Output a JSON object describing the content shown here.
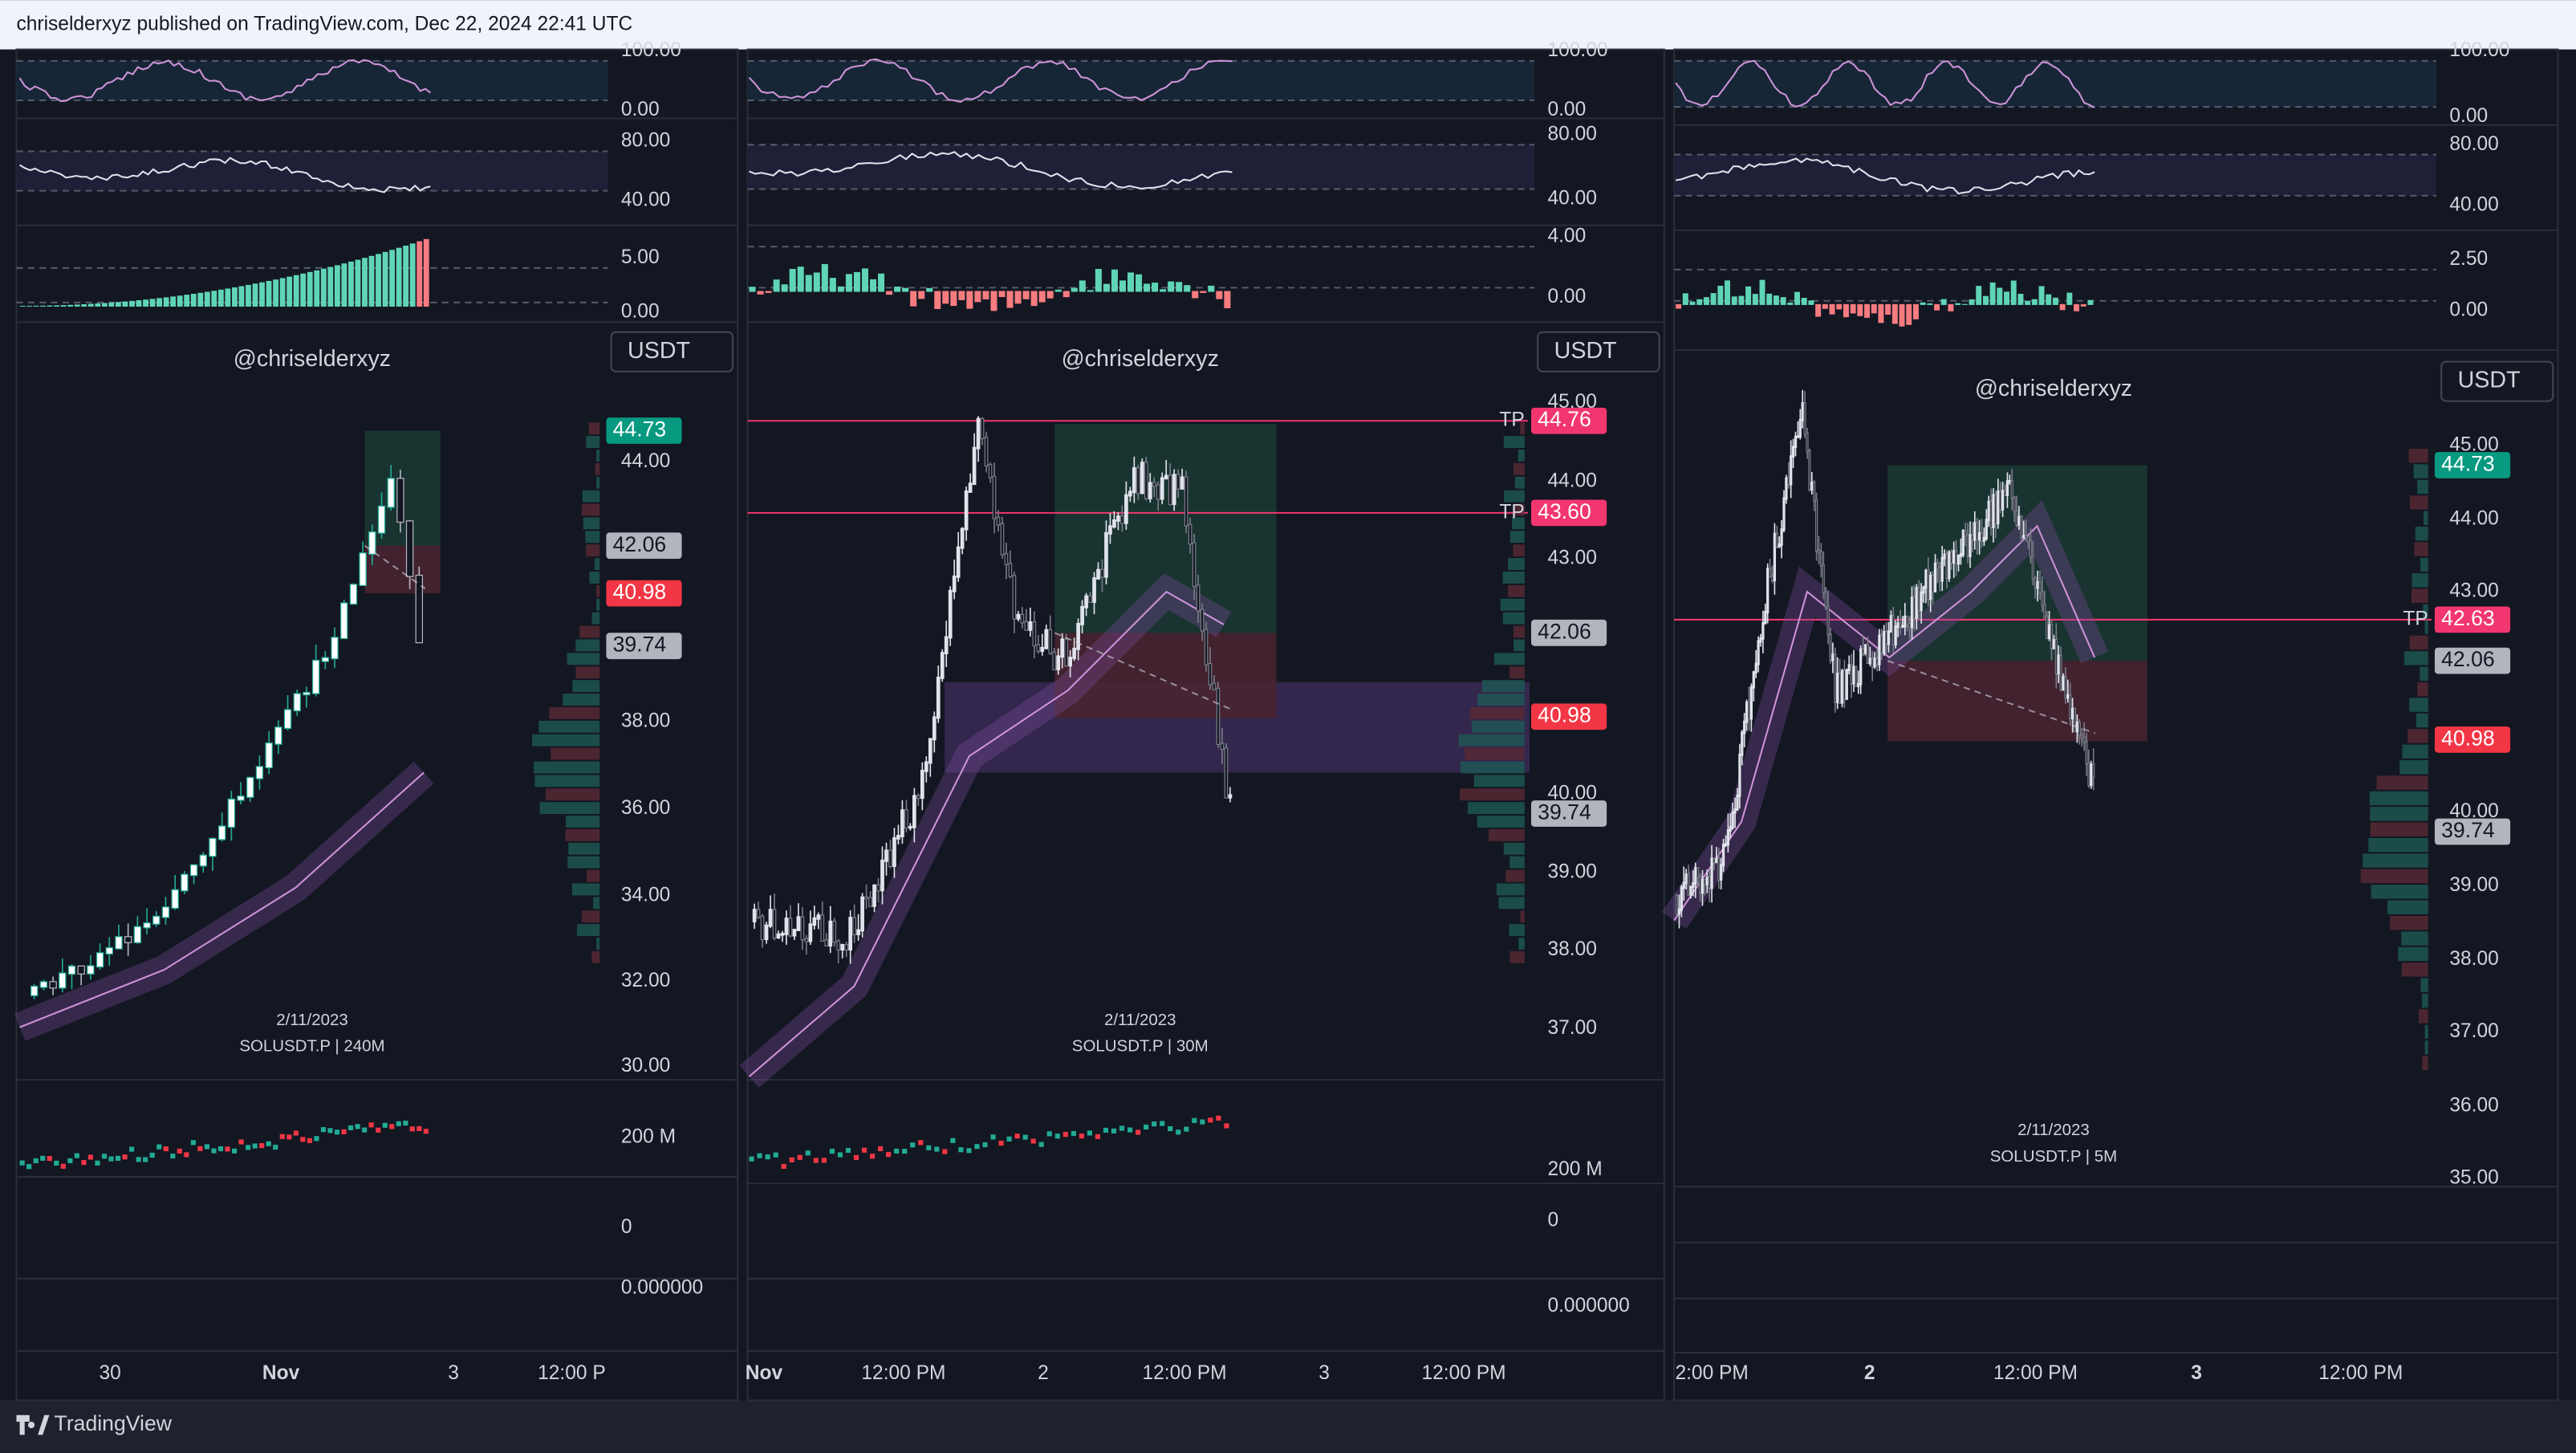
{
  "header": {
    "text": "chriselderxyz published on TradingView.com, Dec 22, 2024 22:41 UTC"
  },
  "footer": {
    "brand": "TradingView"
  },
  "panels": [
    {
      "oscillator_axes": [
        [
          "100.00",
          "0.00"
        ],
        [
          "80.00",
          "40.00"
        ],
        [
          "5.00",
          "0.00"
        ]
      ],
      "currency": "USDT",
      "watermark": "@chriselderxyz",
      "price_ticks": [
        "44.00",
        "38.00",
        "36.00",
        "34.00",
        "32.00",
        "30.00"
      ],
      "price_tags": [
        {
          "price": "44.73"
        },
        {
          "price": "42.06"
        },
        {
          "price": "40.98"
        },
        {
          "price": "39.74"
        }
      ],
      "date": "2/11/2023",
      "symbol": "SOLUSDT.P | 240M",
      "lower_axes": [
        "200 M",
        "0",
        "0.000000"
      ],
      "time_labels": [
        "30",
        "Nov",
        "3",
        "12:00 P"
      ]
    },
    {
      "oscillator_axes": [
        [
          "100.00",
          "0.00"
        ],
        [
          "80.00",
          "40.00"
        ],
        [
          "4.00",
          "0.00"
        ]
      ],
      "currency": "USDT",
      "watermark": "@chriselderxyz",
      "price_ticks": [
        "45.00",
        "44.00",
        "43.00",
        "40.00",
        "39.00",
        "38.00",
        "37.00"
      ],
      "price_tags": [
        {
          "label": "TP",
          "price": "44.76"
        },
        {
          "label": "TP",
          "price": "43.60"
        },
        {
          "price": "42.06"
        },
        {
          "price": "40.98"
        },
        {
          "price": "39.74"
        }
      ],
      "date": "2/11/2023",
      "symbol": "SOLUSDT.P | 30M",
      "lower_axes": [
        "200 M",
        "0",
        "0.000000"
      ],
      "time_labels": [
        "Nov",
        "12:00 PM",
        "2",
        "12:00 PM",
        "3",
        "12:00 PM"
      ]
    },
    {
      "oscillator_axes": [
        [
          "100.00",
          "0.00"
        ],
        [
          "80.00",
          "40.00"
        ],
        [
          "2.50",
          "0.00"
        ]
      ],
      "currency": "USDT",
      "watermark": "@chriselderxyz",
      "price_ticks": [
        "45.00",
        "44.00",
        "43.00",
        "40.00",
        "39.00",
        "38.00",
        "37.00",
        "36.00",
        "35.00"
      ],
      "price_tags": [
        {
          "price": "44.73"
        },
        {
          "label": "TP",
          "price": "42.63"
        },
        {
          "price": "42.06"
        },
        {
          "price": "40.98"
        },
        {
          "price": "39.74"
        }
      ],
      "date": "2/11/2023",
      "symbol": "SOLUSDT.P | 5M",
      "time_labels": [
        "2:00 PM",
        "2",
        "12:00 PM",
        "3",
        "12:00 PM"
      ]
    }
  ]
}
